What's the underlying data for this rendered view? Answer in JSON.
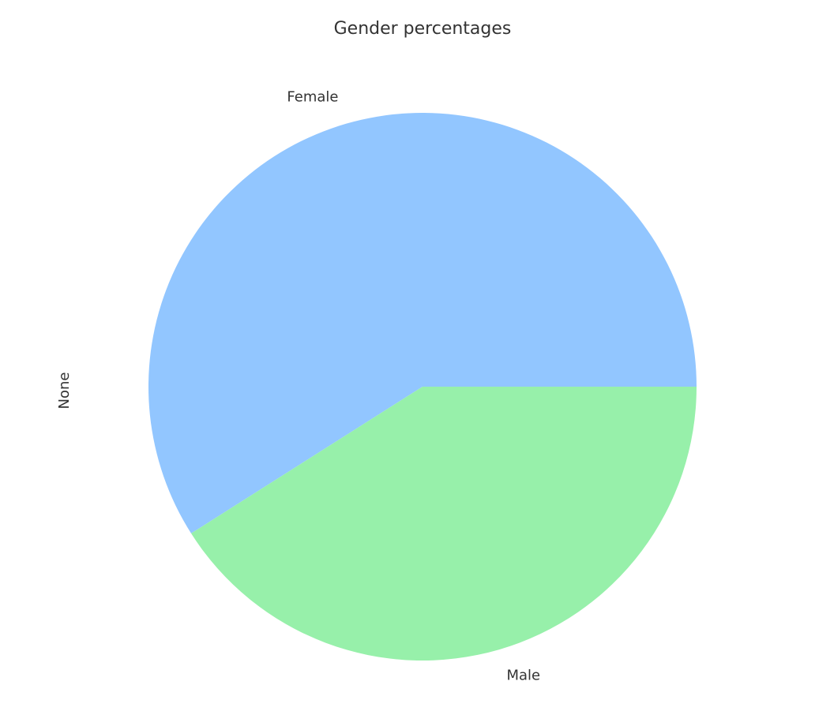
{
  "chart_data": {
    "type": "pie",
    "title": "Gender percentages",
    "ylabel": "None",
    "labels": [
      "Female",
      "Male"
    ],
    "values": [
      59,
      41
    ],
    "colors": [
      "#92c6ff",
      "#97f0aa"
    ],
    "start_angle_deg": 0,
    "direction": "counterclockwise",
    "grid": false,
    "legend": "none"
  }
}
